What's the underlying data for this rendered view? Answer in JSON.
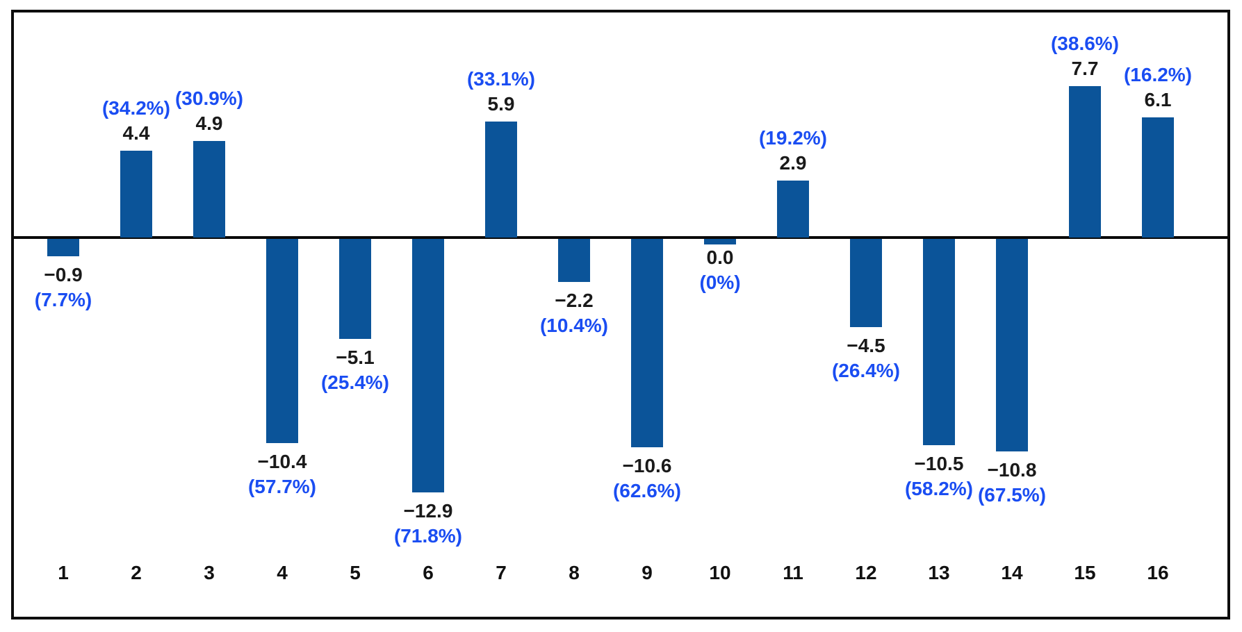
{
  "chart_data": {
    "type": "bar",
    "title": "",
    "categories": [
      "1",
      "2",
      "3",
      "4",
      "5",
      "6",
      "7",
      "8",
      "9",
      "10",
      "11",
      "12",
      "13",
      "14",
      "15",
      "16"
    ],
    "values": [
      -0.9,
      4.4,
      4.9,
      -10.4,
      -5.1,
      -12.9,
      5.9,
      -2.2,
      -10.6,
      0.0,
      2.9,
      -4.5,
      -10.5,
      -10.8,
      7.7,
      6.1
    ],
    "value_labels": [
      "−0.9",
      "4.4",
      "4.9",
      "−10.4",
      "−5.1",
      "−12.9",
      "5.9",
      "−2.2",
      "−10.6",
      "0.0",
      "2.9",
      "−4.5",
      "−10.5",
      "−10.8",
      "7.7",
      "6.1"
    ],
    "pct_labels": [
      "(7.7%)",
      "(34.2%)",
      "(30.9%)",
      "(57.7%)",
      "(25.4%)",
      "(71.8%)",
      "(33.1%)",
      "(10.4%)",
      "(62.6%)",
      "(0%)",
      "(19.2%)",
      "(26.4%)",
      "(58.2%)",
      "(67.5%)",
      "(38.6%)",
      "(16.2%)"
    ],
    "xlabel": "",
    "ylabel": "",
    "ylim": [
      -15,
      10
    ],
    "grid": false,
    "legend": null,
    "colors": {
      "bar": "#0b5499",
      "pct_label": "#1a4df2",
      "value_label": "#1a1a1a",
      "axis": "#0a0a0a",
      "frame_border": "#0d0d0d",
      "background": "#ffffff"
    }
  }
}
